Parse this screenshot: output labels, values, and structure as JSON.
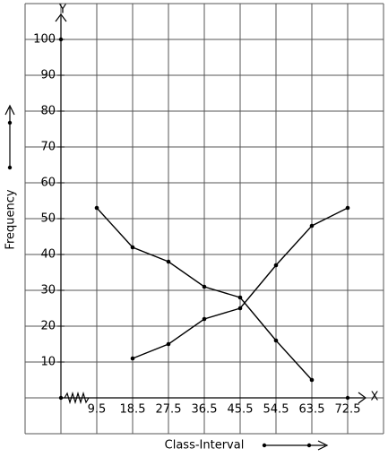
{
  "chart_data": {
    "type": "line",
    "x_label": "Class-Interval",
    "y_label": "Frequency",
    "x_axis_name": "X",
    "y_axis_name": "Y",
    "categories": [
      "9.5",
      "18.5",
      "27.5",
      "36.5",
      "45.5",
      "54.5",
      "63.5",
      "72.5"
    ],
    "series": [
      {
        "color": "#000000",
        "values": [
          null,
          11,
          15,
          22,
          25,
          37,
          48,
          53
        ]
      },
      {
        "color": "#000000",
        "values": [
          53,
          42,
          38,
          31,
          28,
          16,
          5,
          null
        ]
      }
    ],
    "ylim": [
      -10,
      110
    ],
    "yticks": [
      10,
      20,
      30,
      40,
      50,
      60,
      70,
      80,
      90,
      100
    ],
    "grid": true
  }
}
